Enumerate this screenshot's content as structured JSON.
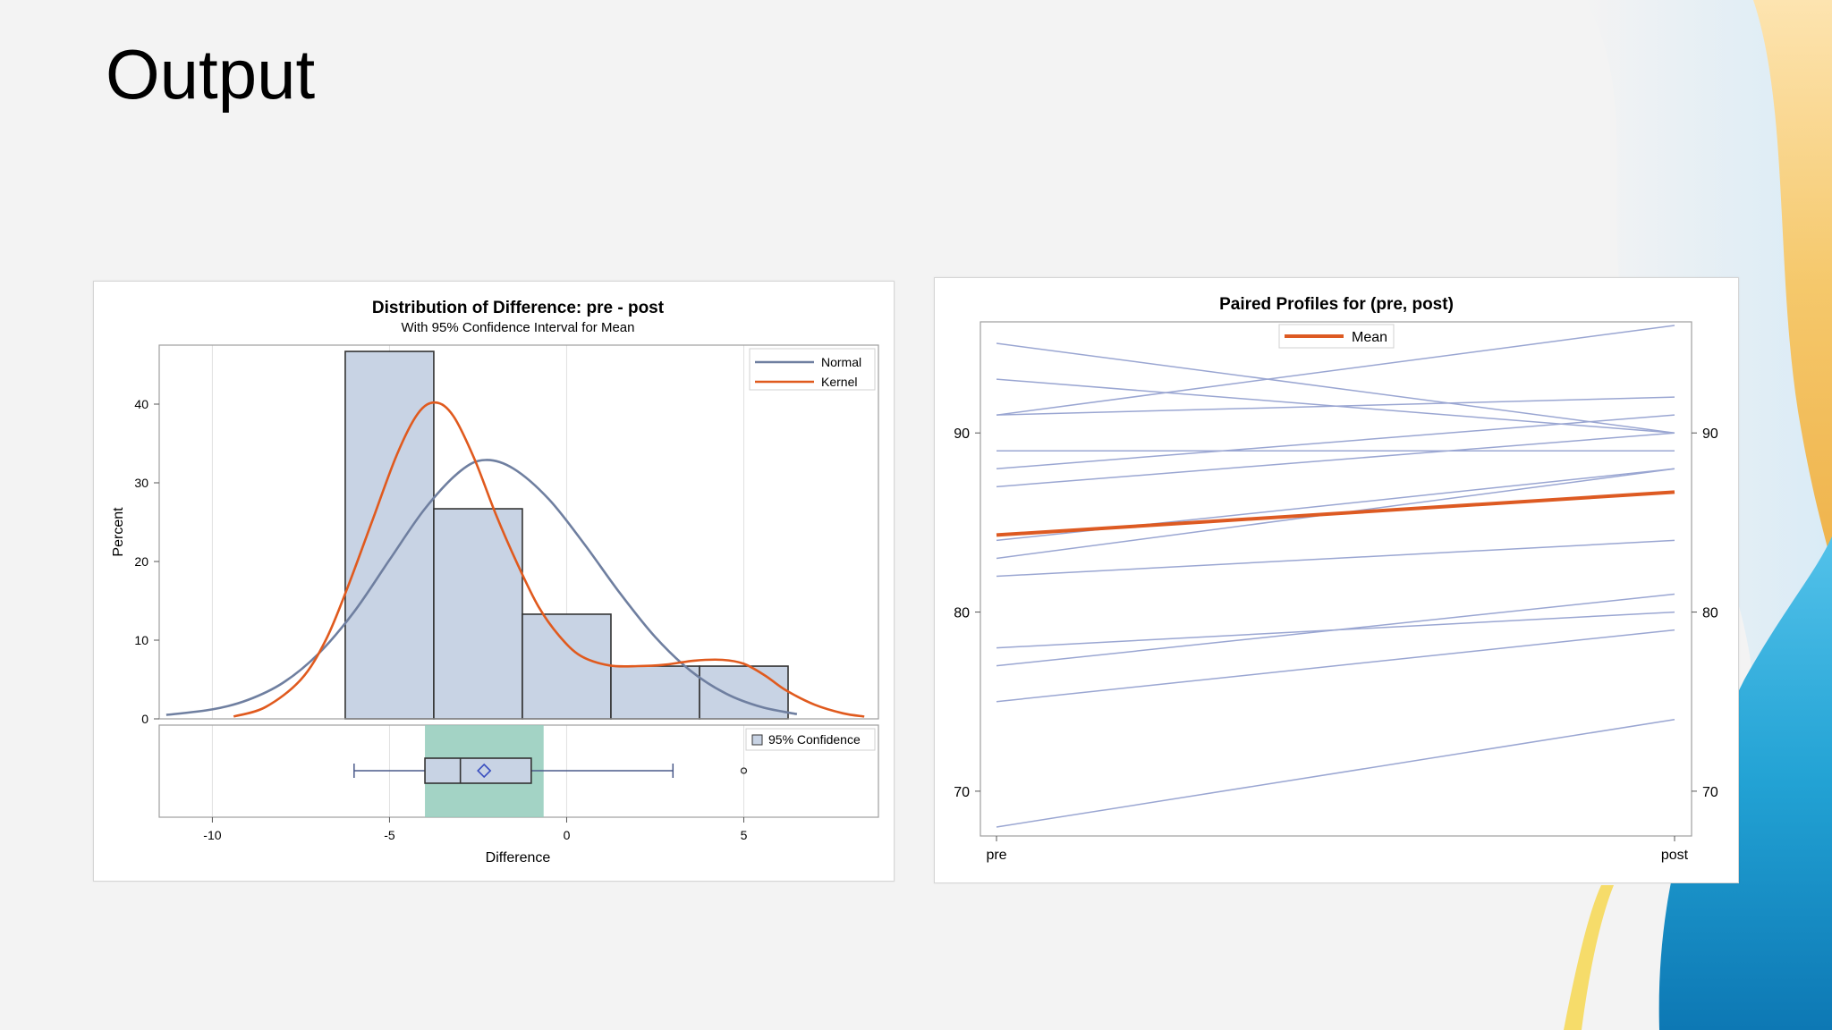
{
  "slide": {
    "title": "Output"
  },
  "colors": {
    "bar_fill": "#c8d3e4",
    "bar_stroke": "#333333",
    "normal_curve": "#6f7fa0",
    "kernel_curve": "#e05a1e",
    "ci_band": "#93cbbb",
    "profile_line": "#9aa6d2",
    "mean_line": "#dd5a22",
    "grid": "#e1e1e1"
  },
  "chart_data": [
    {
      "type": "bar",
      "title": "Distribution of Difference: pre - post",
      "subtitle": "With 95% Confidence Interval for Mean",
      "xlabel": "Difference",
      "ylabel": "Percent",
      "xlim": [
        -11.5,
        8.8
      ],
      "ylim": [
        0,
        47.5
      ],
      "xticks": [
        -10,
        -5,
        0,
        5
      ],
      "yticks": [
        0,
        10,
        20,
        30,
        40
      ],
      "grid": true,
      "legend_position": "top-right",
      "bins": [
        {
          "x0": -6.25,
          "x1": -3.75,
          "value": 46.7
        },
        {
          "x0": -3.75,
          "x1": -1.25,
          "value": 26.7
        },
        {
          "x0": -1.25,
          "x1": 1.25,
          "value": 13.3
        },
        {
          "x0": 1.25,
          "x1": 3.75,
          "value": 6.7
        },
        {
          "x0": 3.75,
          "x1": 6.25,
          "value": 6.7
        }
      ],
      "series": [
        {
          "name": "Normal",
          "x": [
            -11.3,
            -10,
            -9,
            -8,
            -7,
            -6,
            -5,
            -4,
            -3,
            -2.3,
            -1.5,
            -0.5,
            0.5,
            1.5,
            2.5,
            3.5,
            4.5,
            5.5,
            6.5
          ],
          "values": [
            0.5,
            1.2,
            2.4,
            4.6,
            8.3,
            13.6,
            20.2,
            26.7,
            31.5,
            32.9,
            31.8,
            27.9,
            22.2,
            16.0,
            10.4,
            6.1,
            3.2,
            1.5,
            0.6
          ]
        },
        {
          "name": "Kernel",
          "x": [
            -9.4,
            -8.5,
            -7.5,
            -6.8,
            -6.2,
            -5.5,
            -4.8,
            -4.2,
            -3.7,
            -3.2,
            -2.6,
            -2.0,
            -1.4,
            -0.8,
            -0.2,
            0.4,
            1.2,
            2.0,
            2.8,
            3.6,
            4.4,
            5.0,
            5.6,
            6.2,
            7.0,
            7.8,
            8.4
          ],
          "values": [
            0.3,
            1.5,
            5.0,
            10.0,
            16.5,
            25.0,
            33.5,
            38.8,
            40.2,
            38.5,
            33.0,
            26.0,
            19.8,
            14.3,
            10.5,
            8.0,
            6.8,
            6.7,
            6.9,
            7.4,
            7.5,
            7.0,
            5.5,
            3.6,
            1.8,
            0.7,
            0.3
          ]
        }
      ],
      "boxplot": {
        "min": -6.0,
        "q1": -4.0,
        "median": -3.0,
        "mean": -2.33,
        "q3": -1.0,
        "max": 3.0,
        "outliers": [
          5.0
        ],
        "ci_low": -4.0,
        "ci_high": -0.65
      },
      "ci_legend_label": "95% Confidence"
    },
    {
      "type": "line",
      "title": "Paired Profiles for (pre, post)",
      "categories": [
        "pre",
        "post"
      ],
      "ylim": [
        67.5,
        96.2
      ],
      "yticks": [
        70,
        80,
        90
      ],
      "legend_position": "top-center",
      "series": [
        {
          "values": [
            95,
            90
          ]
        },
        {
          "values": [
            93,
            90
          ]
        },
        {
          "values": [
            91,
            96
          ]
        },
        {
          "values": [
            91,
            92
          ]
        },
        {
          "values": [
            89,
            89
          ]
        },
        {
          "values": [
            88,
            91
          ]
        },
        {
          "values": [
            87,
            90
          ]
        },
        {
          "values": [
            84,
            88
          ]
        },
        {
          "values": [
            83,
            88
          ]
        },
        {
          "values": [
            82,
            84
          ]
        },
        {
          "values": [
            78,
            80
          ]
        },
        {
          "values": [
            77,
            81
          ]
        },
        {
          "values": [
            75,
            79
          ]
        },
        {
          "values": [
            68,
            74
          ]
        }
      ],
      "mean": {
        "name": "Mean",
        "values": [
          84.3,
          86.7
        ]
      }
    }
  ]
}
